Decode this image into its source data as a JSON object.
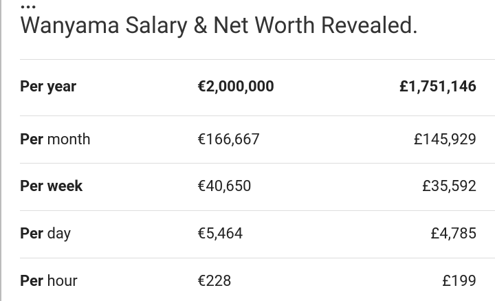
{
  "header": {
    "ellipsis": "...",
    "title": "Wanyama Salary & Net Worth Revealed."
  },
  "table": {
    "rows": [
      {
        "label_bold": "Per year",
        "eur": "€2,000,000",
        "gbp": "£1,751,146",
        "bold": true
      },
      {
        "label_bold": "Per",
        "label": "month",
        "eur": "€166,667",
        "gbp": "£145,929"
      },
      {
        "label_bold": "Per week",
        "eur": "€40,650",
        "gbp": "£35,592"
      },
      {
        "label_bold": "Per",
        "label": "day",
        "eur": "€5,464",
        "gbp": "£4,785"
      },
      {
        "label_bold": "Per",
        "label": "hour",
        "eur": "€228",
        "gbp": "£199"
      }
    ]
  }
}
